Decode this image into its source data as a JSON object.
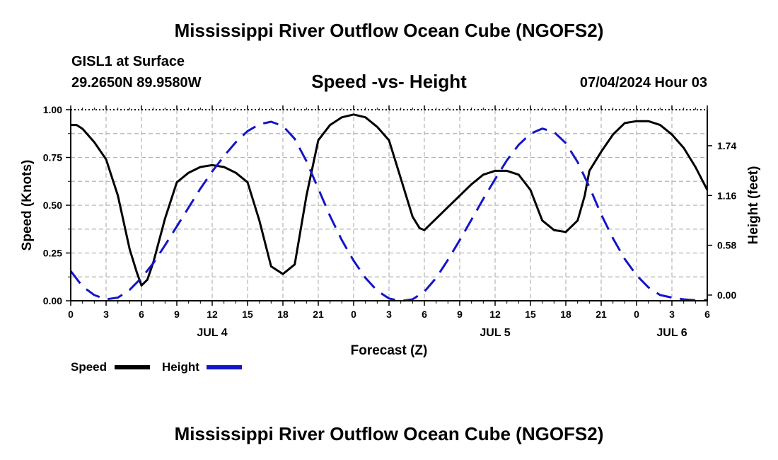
{
  "header": {
    "title": "Mississippi River Outflow Ocean Cube (NGOFS2)",
    "station": "GISL1 at Surface",
    "coords": "29.2650N  89.9580W",
    "datetime": "07/04/2024 Hour 03",
    "footer_title": "Mississippi River Outflow Ocean Cube (NGOFS2)"
  },
  "chart_data": {
    "type": "line",
    "title": "Speed -vs- Height",
    "xlabel": "Forecast (Z)",
    "ylabel": "Speed (Knots)",
    "y2label": "Height (feet)",
    "xlim": [
      0,
      54
    ],
    "ylim": [
      0,
      1.0
    ],
    "y2lim": [
      -0.0667,
      2.16
    ],
    "x_ticks": [
      "0",
      "3",
      "6",
      "9",
      "12",
      "15",
      "18",
      "21",
      "0",
      "3",
      "6",
      "9",
      "12",
      "15",
      "18",
      "21",
      "0",
      "3",
      "6"
    ],
    "y_ticks": [
      "0.00",
      "0.25",
      "0.50",
      "0.75",
      "1.00"
    ],
    "y2_ticks": [
      "0.00",
      "0.58",
      "1.16",
      "1.74"
    ],
    "y2_tick_values": [
      0.0,
      0.58,
      1.16,
      1.74
    ],
    "date_labels": [
      {
        "label": "JUL 4",
        "x": 12
      },
      {
        "label": "JUL 5",
        "x": 36
      },
      {
        "label": "JUL 6",
        "x": 51
      }
    ],
    "grid": true,
    "legend": [
      {
        "name": "Speed",
        "color": "#000000",
        "dash": "solid"
      },
      {
        "name": "Height",
        "color": "#1414c8",
        "dash": "dashed"
      }
    ],
    "series": [
      {
        "name": "Speed",
        "axis": "left",
        "color": "#000000",
        "x": [
          0,
          0.5,
          1,
          2,
          3,
          4,
          5,
          5.6,
          6,
          6.5,
          7,
          8,
          9,
          10,
          11,
          12,
          13,
          14,
          15,
          16,
          17,
          18,
          19,
          20,
          21,
          22,
          23,
          24,
          25,
          26,
          27,
          28,
          29,
          29.6,
          30,
          31,
          32,
          33,
          34,
          35,
          36,
          37,
          38,
          39,
          40,
          41,
          42,
          43,
          43.6,
          44,
          45,
          46,
          47,
          48,
          49,
          50,
          51,
          52,
          53,
          54
        ],
        "y": [
          0.92,
          0.92,
          0.9,
          0.83,
          0.74,
          0.55,
          0.27,
          0.15,
          0.08,
          0.11,
          0.2,
          0.43,
          0.62,
          0.67,
          0.7,
          0.71,
          0.7,
          0.67,
          0.62,
          0.42,
          0.18,
          0.14,
          0.19,
          0.55,
          0.84,
          0.92,
          0.96,
          0.975,
          0.96,
          0.91,
          0.84,
          0.64,
          0.44,
          0.38,
          0.37,
          0.43,
          0.49,
          0.55,
          0.61,
          0.66,
          0.68,
          0.68,
          0.66,
          0.58,
          0.42,
          0.37,
          0.36,
          0.42,
          0.55,
          0.68,
          0.78,
          0.87,
          0.93,
          0.94,
          0.94,
          0.92,
          0.87,
          0.8,
          0.7,
          0.58
        ]
      },
      {
        "name": "Height",
        "axis": "right",
        "color": "#1414c8",
        "x": [
          0,
          1,
          2,
          3,
          4,
          5,
          6,
          7,
          8,
          9,
          10,
          11,
          12,
          13,
          14,
          15,
          16,
          17,
          18,
          19,
          20,
          21,
          22,
          23,
          24,
          25,
          26,
          27,
          28,
          29,
          30,
          31,
          32,
          33,
          34,
          35,
          36,
          37,
          38,
          39,
          40,
          41,
          42,
          43,
          44,
          45,
          46,
          47,
          48,
          49,
          50,
          51,
          52,
          53,
          54
        ],
        "y": [
          0.28,
          0.1,
          0.0,
          -0.05,
          -0.03,
          0.06,
          0.2,
          0.37,
          0.58,
          0.8,
          1.02,
          1.24,
          1.44,
          1.62,
          1.78,
          1.91,
          1.99,
          2.02,
          1.97,
          1.82,
          1.56,
          1.24,
          0.92,
          0.64,
          0.4,
          0.2,
          0.05,
          -0.04,
          -0.07,
          -0.05,
          0.04,
          0.2,
          0.41,
          0.64,
          0.88,
          1.12,
          1.35,
          1.57,
          1.75,
          1.88,
          1.94,
          1.9,
          1.77,
          1.55,
          1.26,
          0.94,
          0.66,
          0.42,
          0.23,
          0.09,
          0.0,
          -0.03,
          -0.05,
          -0.06,
          -0.06
        ]
      }
    ]
  }
}
